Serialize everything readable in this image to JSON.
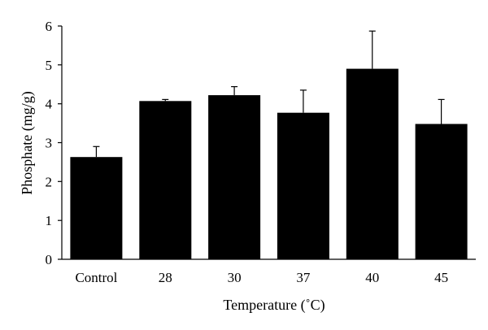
{
  "chart_data": {
    "type": "bar",
    "title": "",
    "xlabel": "Temperature (˚C)",
    "ylabel": "Phosphate (mg/g)",
    "categories": [
      "Control",
      "28",
      "30",
      "37",
      "40",
      "45"
    ],
    "values": [
      2.63,
      4.07,
      4.22,
      3.77,
      4.9,
      3.48
    ],
    "errors": [
      0.27,
      0.04,
      0.22,
      0.58,
      0.97,
      0.63
    ],
    "ylim": [
      0,
      6
    ],
    "yticks": [
      0,
      1,
      2,
      3,
      4,
      5,
      6
    ],
    "grid": false,
    "legend": "none",
    "bar_color": "#000000"
  }
}
